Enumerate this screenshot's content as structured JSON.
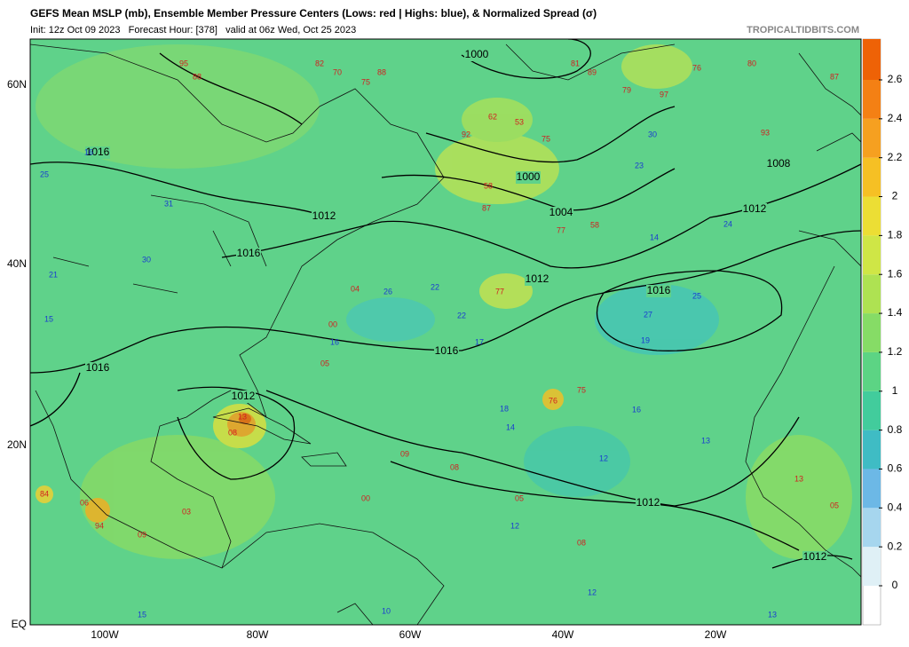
{
  "header": {
    "title": "GEFS Mean MSLP (mb), Ensemble Member Pressure Centers (Lows: red | Highs: blue), & Normalized Spread (σ)",
    "subtitle": "Init: 12z Oct 09 2023   Forecast Hour: [378]   valid at 06z Wed, Oct 25 2023",
    "source": "TROPICALTIDBITS.COM"
  },
  "map": {
    "lat_labels": [
      "60N",
      "40N",
      "20N",
      "EQ"
    ],
    "lon_labels": [
      "100W",
      "80W",
      "60W",
      "40W",
      "20W"
    ],
    "isobar_labels": [
      "1000",
      "1016",
      "1000",
      "1004",
      "1012",
      "1012",
      "1008",
      "1016",
      "1012",
      "1016",
      "1016",
      "1016",
      "1012",
      "1012",
      "1012"
    ],
    "lows": [
      "95",
      "88",
      "82",
      "70",
      "88",
      "75",
      "92",
      "53",
      "62",
      "75",
      "81",
      "89",
      "79",
      "97",
      "76",
      "80",
      "87",
      "93",
      "58",
      "87",
      "58",
      "77",
      "77",
      "04",
      "00",
      "05",
      "76",
      "75",
      "13",
      "08",
      "09",
      "08",
      "05",
      "00",
      "84",
      "06",
      "94",
      "03",
      "09",
      "08",
      "13",
      "05"
    ],
    "highs": [
      "16",
      "25",
      "31",
      "30",
      "21",
      "15",
      "26",
      "22",
      "22",
      "17",
      "16",
      "27",
      "19",
      "25",
      "24",
      "30",
      "23",
      "14",
      "18",
      "14",
      "16",
      "13",
      "12",
      "12",
      "15",
      "10",
      "13",
      "12"
    ]
  },
  "colorbar": {
    "ticks": [
      0,
      0.2,
      0.4,
      0.6,
      0.8,
      1,
      1.2,
      1.4,
      1.6,
      1.8,
      2,
      2.2,
      2.4,
      2.6
    ],
    "colors": [
      "#dff0f6",
      "#a6d6ee",
      "#6cb8e6",
      "#3fbcc4",
      "#42cc9c",
      "#5cd484",
      "#86dc66",
      "#aee252",
      "#cfe646",
      "#ecde34",
      "#f6c024",
      "#f6a020",
      "#f48014",
      "#ee6206"
    ]
  }
}
